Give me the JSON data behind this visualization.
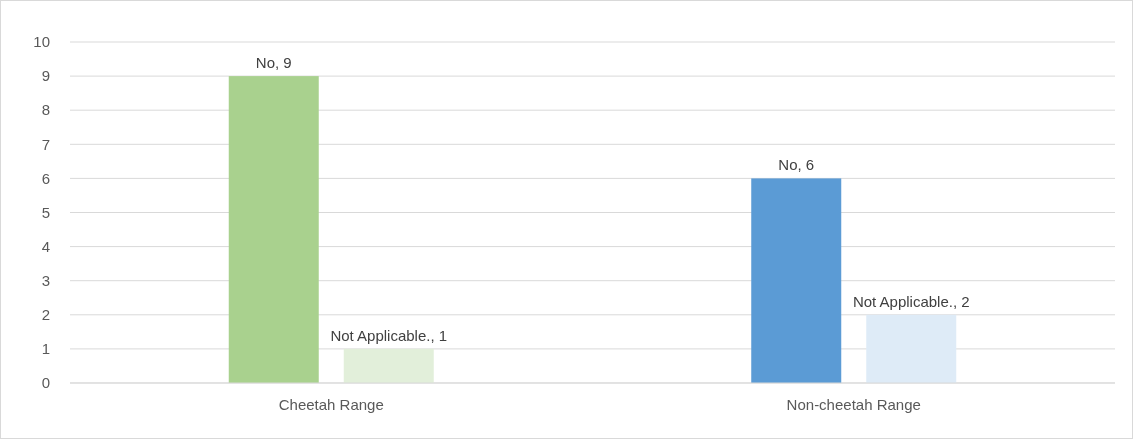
{
  "chart_data": {
    "type": "bar",
    "categories": [
      "Cheetah Range",
      "Non-cheetah Range"
    ],
    "series": [
      {
        "colors": [
          "#a9d18e",
          "#5b9bd5"
        ],
        "values": [
          9,
          6
        ],
        "value_labels": [
          "No, 9",
          "No, 6"
        ]
      },
      {
        "colors": [
          "#e2efda",
          "#deebf7"
        ],
        "values": [
          1,
          2
        ],
        "value_labels": [
          "Not Applicable., 1",
          "Not Applicable., 2"
        ]
      }
    ],
    "ylim": [
      0,
      10
    ],
    "yticks": [
      0,
      1,
      2,
      3,
      4,
      5,
      6,
      7,
      8,
      9,
      10
    ],
    "grid": "y"
  }
}
